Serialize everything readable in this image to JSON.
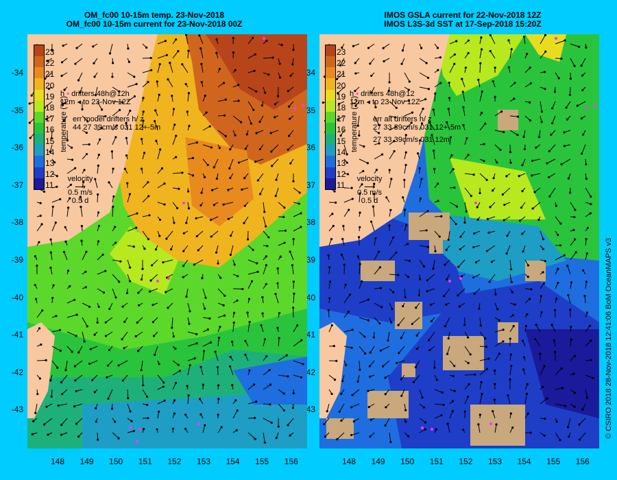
{
  "left": {
    "title_line1": "OM_fc00 10-15m temp. 23-Nov-2018",
    "title_line2": "OM_fc00 10-15m current for 23-Nov-2018 00Z",
    "legend_drifters": "drifters 48h@12h",
    "legend_to": "to 23-Nov 12Z",
    "legend_err_title": "err model drifters h/ z",
    "legend_err_values": "44 27 39cm/s 031 12+-5m",
    "legend_err_values2": "",
    "velocity_label": "velocity",
    "velocity_scale": "0.5 m/s",
    "velocity_days": "0.5 d"
  },
  "right": {
    "title_line1": "IMOS GSLA current for 22-Nov-2018 12Z",
    "title_line2": "IMOS L3S-3d SST at 17-Sep-2018 15:20Z",
    "legend_drifters": "drifters 48h@12",
    "legend_to": "to 23-Nov 12Z",
    "legend_err_title": "err alt drifters h/ z",
    "legend_err_values": "27 33 39cm/s 031 12+-5m",
    "legend_err_values2": "27 33 39cm/s 031 12m",
    "velocity_label": "velocity",
    "velocity_scale": "0.5 m/s",
    "velocity_days": "0.5 d"
  },
  "colorbar": {
    "title": "temperature (°C)",
    "ticks": [
      "23",
      "22",
      "21",
      "20",
      "19",
      "18",
      "17",
      "16",
      "15",
      "14",
      "13",
      "12",
      "11"
    ],
    "colors": [
      "#b8441a",
      "#d0661e",
      "#e88a1e",
      "#f0b41e",
      "#e8dc1e",
      "#b8e81e",
      "#5cd82a",
      "#2ac43c",
      "#1eb07a",
      "#1e9ec4",
      "#1e6ee0",
      "#1e3ec8",
      "#1a1a9a"
    ]
  },
  "y_ticks": [
    "-34",
    "-35",
    "-36",
    "-37",
    "-38",
    "-39",
    "-40",
    "-41",
    "-42",
    "-43"
  ],
  "x_ticks": [
    "148",
    "149",
    "150",
    "151",
    "152",
    "153",
    "154",
    "155",
    "156"
  ],
  "credit": "© CSIRO 2018   28-Nov-2018 12:41:06 BoM OceanMAPS v3",
  "colors": {
    "background": "#00ccff",
    "land": "#f8c8a0",
    "no_data": "#c8a87c"
  }
}
